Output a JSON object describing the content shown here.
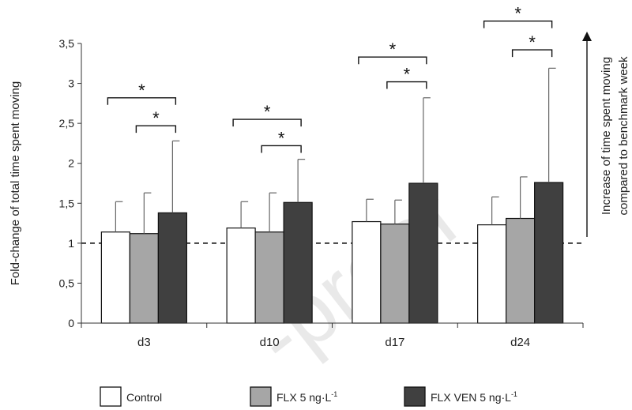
{
  "chart_data": {
    "type": "bar",
    "categories": [
      "d3",
      "d10",
      "d17",
      "d24"
    ],
    "series": [
      {
        "name": "Control",
        "color": "#ffffff",
        "values": [
          1.14,
          1.19,
          1.27,
          1.23
        ],
        "errors": [
          0.38,
          0.33,
          0.28,
          0.35
        ]
      },
      {
        "name": "FLX 5 ng·L",
        "name_sup": "-1",
        "color": "#a6a6a6",
        "values": [
          1.12,
          1.14,
          1.24,
          1.31
        ],
        "errors": [
          0.51,
          0.49,
          0.3,
          0.52
        ]
      },
      {
        "name": "FLX VEN 5 ng·L",
        "name_sup": "-1",
        "color": "#404040",
        "values": [
          1.38,
          1.51,
          1.75,
          1.76
        ],
        "errors": [
          0.9,
          0.54,
          1.07,
          1.43
        ]
      }
    ],
    "ylim": [
      0,
      3.5
    ],
    "yticks": [
      "0",
      "0,5",
      "1",
      "1,5",
      "2",
      "2,5",
      "3",
      "3,5"
    ],
    "ylabel": "Fold-change of total time spent moving",
    "reference_line": 1,
    "significance": [
      {
        "category": "d3",
        "from": "Control",
        "to": "FLX VEN 5 ng·L",
        "label": "*",
        "y": 2.82
      },
      {
        "category": "d3",
        "from": "FLX 5 ng·L",
        "to": "FLX VEN 5 ng·L",
        "label": "*",
        "y": 2.47
      },
      {
        "category": "d10",
        "from": "Control",
        "to": "FLX VEN 5 ng·L",
        "label": "*",
        "y": 2.55
      },
      {
        "category": "d10",
        "from": "FLX 5 ng·L",
        "to": "FLX VEN 5 ng·L",
        "label": "*",
        "y": 2.22
      },
      {
        "category": "d17",
        "from": "Control",
        "to": "FLX VEN 5 ng·L",
        "label": "*",
        "y": 3.33
      },
      {
        "category": "d17",
        "from": "FLX 5 ng·L",
        "to": "FLX VEN 5 ng·L",
        "label": "*",
        "y": 3.02
      },
      {
        "category": "d24",
        "from": "Control",
        "to": "FLX VEN 5 ng·L",
        "label": "*",
        "y": 3.78
      },
      {
        "category": "d24",
        "from": "FLX 5 ng·L",
        "to": "FLX VEN 5 ng·L",
        "label": "*",
        "y": 3.42
      }
    ],
    "side_annotation": {
      "line1": "Increase of time spent moving",
      "line2": "compared to benchmark week"
    },
    "legend_position": "bottom",
    "watermark": "-proof"
  }
}
